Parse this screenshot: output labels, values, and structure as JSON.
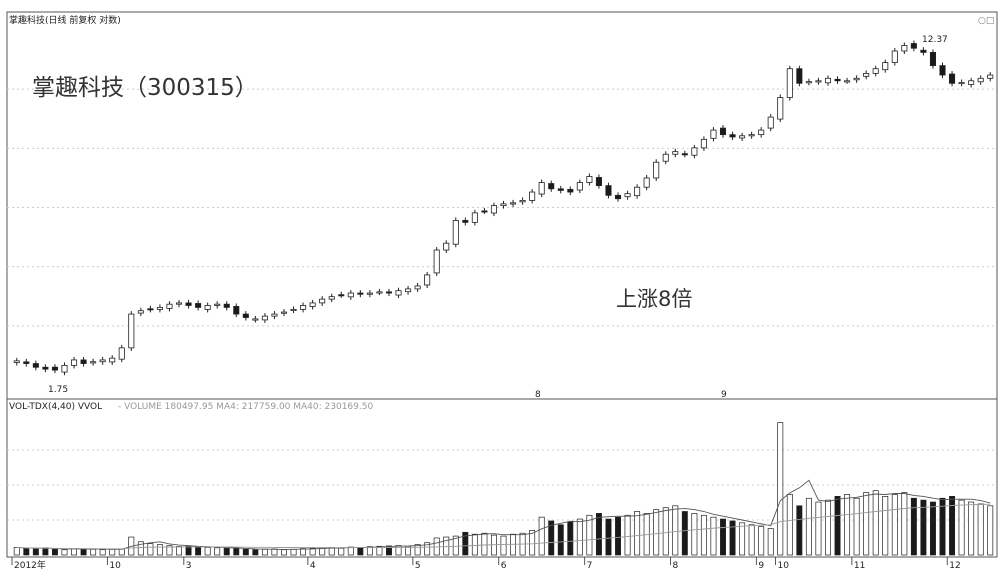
{
  "header": {
    "title": "掌趣科技(日线 前复权 对数)",
    "corner_icons": "○□"
  },
  "annotations": {
    "stock_label": "掌趣科技（300315）",
    "gain_label": "上涨8倍",
    "low_price": "1.75",
    "high_price": "12.37",
    "marker_a": "8",
    "marker_b": "9"
  },
  "volume_header": {
    "label": "VOL-TDX(4,40) VVOL",
    "values": "- VOLUME 180497.95 MA4: 217759.00 MA40: 230169.50"
  },
  "colors": {
    "up": "#ffffff",
    "down": "#1a1a1a",
    "frame": "#555555",
    "grid": "#cccccc",
    "text": "#222222"
  },
  "chart_data": [
    {
      "type": "candlestick",
      "title": "掌趣科技(日线 前复权 对数)",
      "scale": "log",
      "x_labels": [
        "2012年",
        "10",
        "3",
        "4",
        "5",
        "6",
        "7",
        "8",
        "9",
        "10",
        "11",
        "12"
      ],
      "close": [
        1.85,
        1.82,
        1.78,
        1.76,
        1.75,
        1.8,
        1.86,
        1.82,
        1.84,
        1.86,
        1.88,
        2.0,
        2.45,
        2.5,
        2.52,
        2.55,
        2.6,
        2.62,
        2.58,
        2.55,
        2.58,
        2.6,
        2.55,
        2.45,
        2.4,
        2.38,
        2.42,
        2.45,
        2.48,
        2.52,
        2.58,
        2.62,
        2.68,
        2.72,
        2.75,
        2.78,
        2.76,
        2.78,
        2.8,
        2.78,
        2.82,
        2.85,
        2.9,
        3.1,
        3.6,
        3.75,
        4.3,
        4.25,
        4.5,
        4.55,
        4.7,
        4.75,
        4.78,
        4.85,
        5.1,
        5.4,
        5.2,
        5.15,
        5.1,
        5.4,
        5.6,
        5.3,
        5.0,
        4.9,
        5.05,
        5.25,
        5.55,
        6.1,
        6.4,
        6.5,
        6.4,
        6.65,
        7.0,
        7.4,
        7.2,
        7.1,
        7.15,
        7.2,
        7.4,
        8.0,
        9.0,
        10.7,
        9.8,
        9.9,
        9.95,
        10.1,
        9.95,
        9.95,
        10.1,
        10.4,
        10.7,
        11.1,
        11.9,
        12.3,
        12.1,
        11.8,
        10.9,
        10.3,
        9.8,
        9.85,
        9.95,
        10.1,
        10.3
      ],
      "volume_thousands": [
        40,
        35,
        33,
        38,
        30,
        28,
        35,
        32,
        30,
        28,
        30,
        32,
        95,
        70,
        60,
        55,
        50,
        45,
        48,
        42,
        40,
        38,
        35,
        36,
        30,
        28,
        30,
        32,
        28,
        30,
        34,
        36,
        38,
        40,
        36,
        42,
        40,
        44,
        46,
        48,
        50,
        46,
        55,
        65,
        90,
        95,
        100,
        120,
        110,
        115,
        105,
        100,
        110,
        115,
        130,
        200,
        180,
        160,
        175,
        190,
        210,
        220,
        190,
        200,
        210,
        230,
        220,
        240,
        250,
        260,
        230,
        220,
        210,
        200,
        190,
        180,
        170,
        160,
        150,
        140,
        700,
        320,
        260,
        300,
        280,
        290,
        310,
        320,
        300,
        330,
        340,
        310,
        320,
        330,
        300,
        290,
        280,
        300,
        310,
        290,
        280,
        270,
        260
      ]
    }
  ]
}
